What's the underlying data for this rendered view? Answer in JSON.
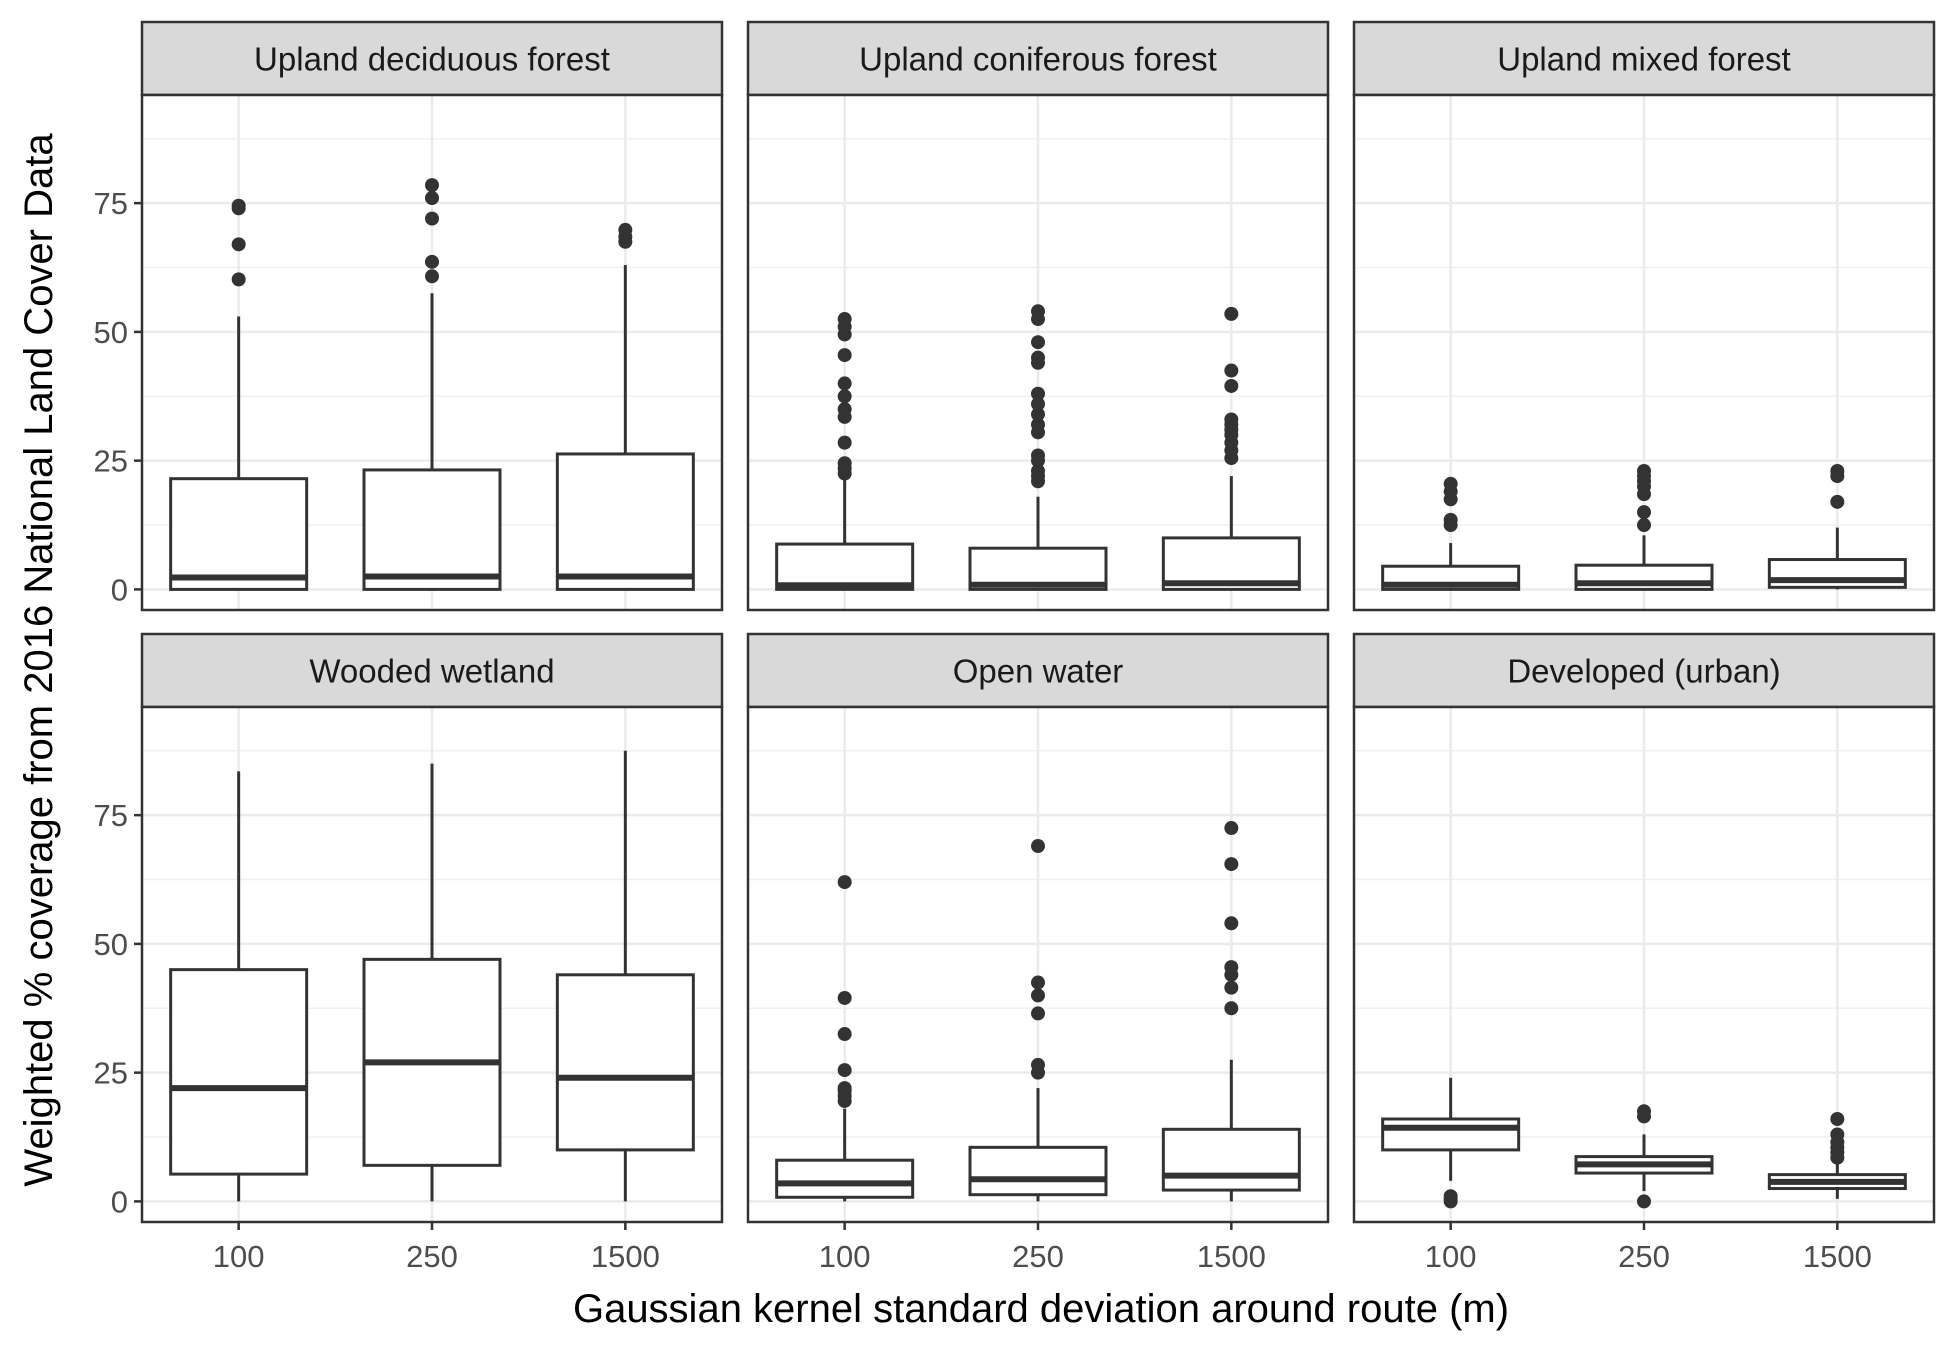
{
  "chart_data": {
    "type": "boxplot",
    "layout": "facet-grid",
    "grid": true,
    "xlabel": "Gaussian kernel standard deviation around route (m)",
    "ylabel": "Weighted % coverage from 2016 National Land Cover Data",
    "categories": [
      "100",
      "250",
      "1500"
    ],
    "yticks": [
      0,
      25,
      50,
      75
    ],
    "ylim": [
      -4,
      96
    ],
    "panels": [
      {
        "title": "Upland deciduous forest",
        "boxes": [
          {
            "category": "100",
            "whisker_low": 0,
            "q1": 0,
            "median": 2.3,
            "q3": 21.5,
            "whisker_high": 53,
            "outliers": [
              60.2,
              67,
              74,
              74.5
            ]
          },
          {
            "category": "250",
            "whisker_low": 0,
            "q1": 0,
            "median": 2.5,
            "q3": 23.2,
            "whisker_high": 57.5,
            "outliers": [
              60.8,
              63.6,
              72,
              76,
              78.5
            ]
          },
          {
            "category": "1500",
            "whisker_low": 0,
            "q1": 0,
            "median": 2.5,
            "q3": 26.3,
            "whisker_high": 63,
            "outliers": [
              67.5,
              68.5,
              69.8
            ]
          }
        ]
      },
      {
        "title": "Upland coniferous forest",
        "boxes": [
          {
            "category": "100",
            "whisker_low": 0,
            "q1": 0,
            "median": 0.8,
            "q3": 8.8,
            "whisker_high": 22,
            "outliers": [
              22.5,
              23.5,
              24.5,
              28.5,
              33.5,
              35,
              37.5,
              40,
              45.5,
              49.5,
              51,
              52.5
            ]
          },
          {
            "category": "250",
            "whisker_low": 0,
            "q1": 0,
            "median": 0.9,
            "q3": 8,
            "whisker_high": 18,
            "outliers": [
              21,
              22,
              23,
              25,
              26,
              30.5,
              32,
              34,
              36,
              38,
              44,
              45,
              48,
              52.5,
              54
            ]
          },
          {
            "category": "1500",
            "whisker_low": 0,
            "q1": 0,
            "median": 1.2,
            "q3": 10,
            "whisker_high": 22,
            "outliers": [
              25.5,
              27,
              28.5,
              30,
              31,
              32,
              33,
              39.5,
              42.5,
              53.5
            ]
          }
        ]
      },
      {
        "title": "Upland mixed forest",
        "boxes": [
          {
            "category": "100",
            "whisker_low": 0,
            "q1": 0,
            "median": 0.9,
            "q3": 4.5,
            "whisker_high": 9,
            "outliers": [
              12.5,
              13.5,
              17.5,
              19,
              20.5
            ]
          },
          {
            "category": "250",
            "whisker_low": 0,
            "q1": 0,
            "median": 1.2,
            "q3": 4.7,
            "whisker_high": 10.5,
            "outliers": [
              12.5,
              15,
              18.5,
              20,
              21,
              22,
              23
            ]
          },
          {
            "category": "1500",
            "whisker_low": 0,
            "q1": 0.4,
            "median": 1.8,
            "q3": 5.8,
            "whisker_high": 12,
            "outliers": [
              17,
              22,
              23
            ]
          }
        ]
      },
      {
        "title": "Wooded wetland",
        "boxes": [
          {
            "category": "100",
            "whisker_low": 0,
            "q1": 5.3,
            "median": 22,
            "q3": 45,
            "whisker_high": 83.5,
            "outliers": []
          },
          {
            "category": "250",
            "whisker_low": 0,
            "q1": 7,
            "median": 27,
            "q3": 47,
            "whisker_high": 85,
            "outliers": []
          },
          {
            "category": "1500",
            "whisker_low": 0,
            "q1": 10,
            "median": 24,
            "q3": 44,
            "whisker_high": 87.5,
            "outliers": []
          }
        ]
      },
      {
        "title": "Open water",
        "boxes": [
          {
            "category": "100",
            "whisker_low": 0,
            "q1": 0.8,
            "median": 3.5,
            "q3": 8,
            "whisker_high": 18,
            "outliers": [
              19.5,
              20.5,
              21.5,
              22,
              25.5,
              32.5,
              39.5,
              62
            ]
          },
          {
            "category": "250",
            "whisker_low": 0,
            "q1": 1.3,
            "median": 4.3,
            "q3": 10.5,
            "whisker_high": 22,
            "outliers": [
              25,
              26.5,
              36.5,
              40,
              42.5,
              69
            ]
          },
          {
            "category": "1500",
            "whisker_low": 0,
            "q1": 2.2,
            "median": 5,
            "q3": 14,
            "whisker_high": 27.5,
            "outliers": [
              37.5,
              41.5,
              44,
              45.5,
              54,
              65.5,
              72.5
            ]
          }
        ]
      },
      {
        "title": "Developed (urban)",
        "boxes": [
          {
            "category": "100",
            "whisker_low": 4,
            "q1": 10,
            "median": 14.3,
            "q3": 16,
            "whisker_high": 24,
            "outliers": [
              0,
              0.5,
              1
            ]
          },
          {
            "category": "250",
            "whisker_low": 2,
            "q1": 5.5,
            "median": 7.2,
            "q3": 8.7,
            "whisker_high": 13,
            "outliers": [
              0,
              16.5,
              17.5
            ]
          },
          {
            "category": "1500",
            "whisker_low": 0.5,
            "q1": 2.5,
            "median": 3.8,
            "q3": 5.2,
            "whisker_high": 7.5,
            "outliers": [
              8.5,
              9.5,
              10.5,
              11.5,
              13,
              16
            ]
          }
        ]
      }
    ]
  }
}
